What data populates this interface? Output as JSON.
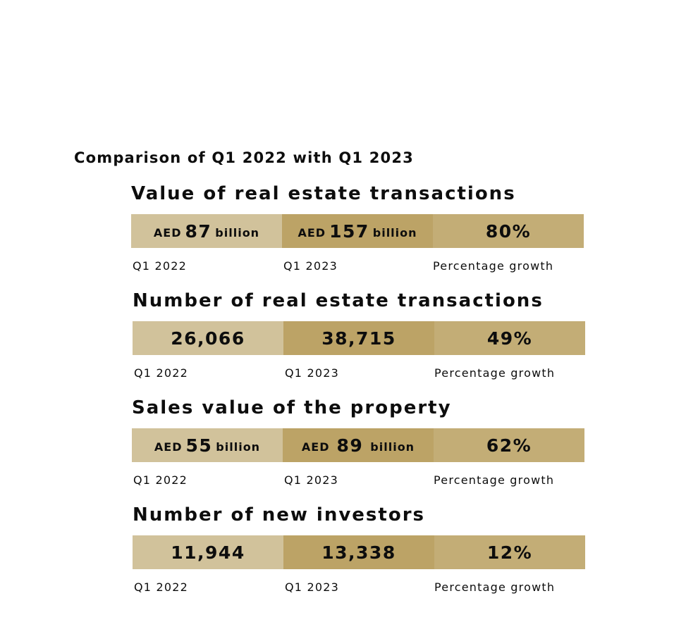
{
  "title": "Comparison of Q1 2022 with Q1 2023",
  "sections": [
    {
      "title": "Value of real estate transactions",
      "q1_2022": {
        "prefix": "AED",
        "value": "87",
        "suffix": "billion"
      },
      "q1_2023": {
        "prefix": "AED",
        "value": "157",
        "suffix": "billion"
      },
      "growth": "80%",
      "labels": {
        "a": "Q1 2022",
        "b": "Q1 2023",
        "c": "Percentage growth"
      }
    },
    {
      "title": "Number of real estate transactions",
      "q1_2022": {
        "value": "26,066"
      },
      "q1_2023": {
        "value": "38,715"
      },
      "growth": "49%",
      "labels": {
        "a": "Q1 2022",
        "b": "Q1 2023",
        "c": "Percentage growth"
      }
    },
    {
      "title": "Sales value of the property",
      "q1_2022": {
        "prefix": "AED",
        "value": "55",
        "suffix": "billion"
      },
      "q1_2023": {
        "prefix": "AED",
        "value": "89",
        "suffix": "billion"
      },
      "growth": "62%",
      "labels": {
        "a": "Q1 2022",
        "b": "Q1 2023",
        "c": "Percentage growth"
      }
    },
    {
      "title": "Number of new investors",
      "q1_2022": {
        "value": "11,944"
      },
      "q1_2023": {
        "value": "13,338"
      },
      "growth": "12%",
      "labels": {
        "a": "Q1 2022",
        "b": "Q1 2023",
        "c": "Percentage growth"
      }
    }
  ],
  "colors": {
    "q1_2022": "#d1c29b",
    "q1_2023": "#bca366",
    "growth": "#c3ad76"
  }
}
